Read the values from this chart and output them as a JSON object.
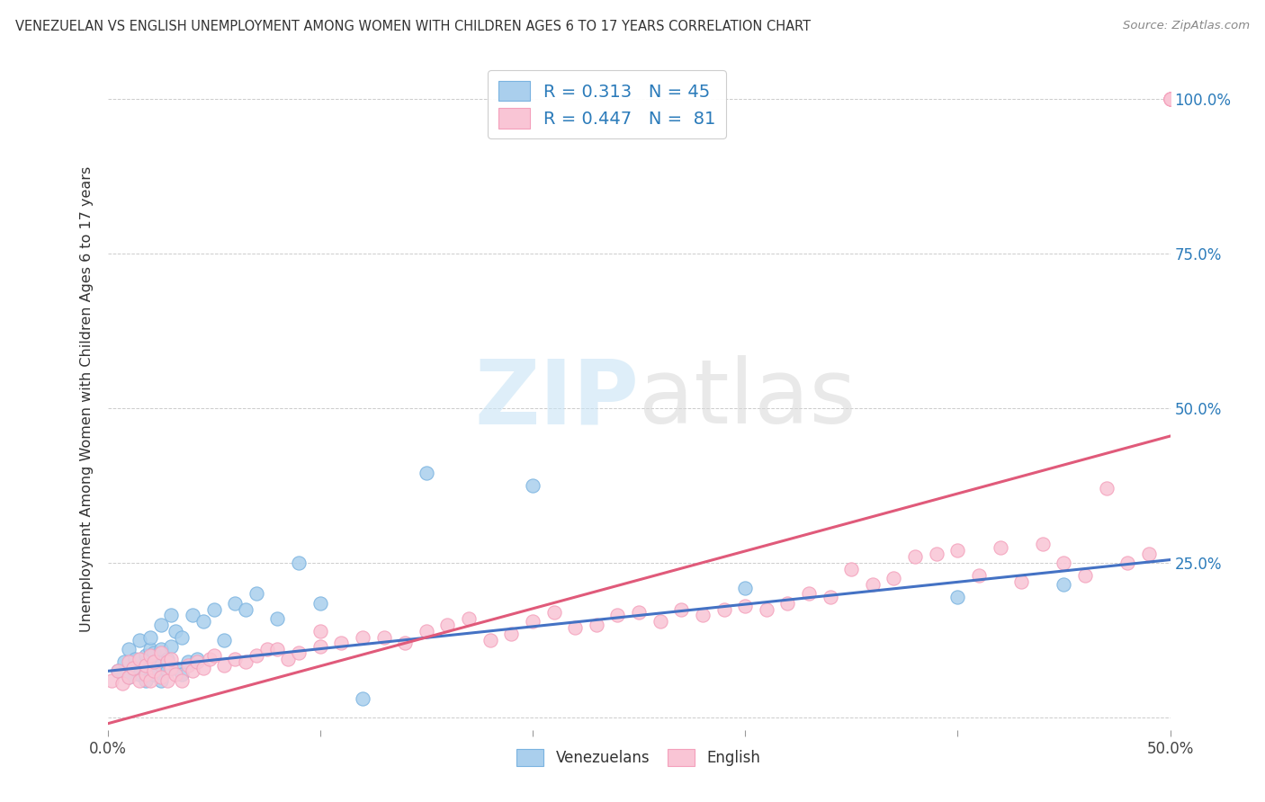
{
  "title": "VENEZUELAN VS ENGLISH UNEMPLOYMENT AMONG WOMEN WITH CHILDREN AGES 6 TO 17 YEARS CORRELATION CHART",
  "source": "Source: ZipAtlas.com",
  "ylabel": "Unemployment Among Women with Children Ages 6 to 17 years",
  "xlim": [
    0.0,
    0.5
  ],
  "ylim": [
    -0.02,
    1.05
  ],
  "venezuelan_color": "#aacfed",
  "venezuelan_edge": "#7ab3e0",
  "english_color": "#f9c5d5",
  "english_edge": "#f4a0bb",
  "trend_venezuelan_color": "#4472c4",
  "trend_english_color": "#e05a7a",
  "legend_R_venezuelan": "0.313",
  "legend_N_venezuelan": "45",
  "legend_R_english": "0.447",
  "legend_N_english": "81",
  "trend_ven_x0": 0.0,
  "trend_ven_y0": 0.075,
  "trend_ven_x1": 0.5,
  "trend_ven_y1": 0.255,
  "trend_eng_x0": 0.0,
  "trend_eng_y0": -0.01,
  "trend_eng_x1": 0.5,
  "trend_eng_y1": 0.455,
  "ven_x": [
    0.005,
    0.008,
    0.01,
    0.01,
    0.012,
    0.013,
    0.015,
    0.015,
    0.018,
    0.018,
    0.02,
    0.02,
    0.02,
    0.022,
    0.022,
    0.025,
    0.025,
    0.025,
    0.025,
    0.028,
    0.028,
    0.03,
    0.03,
    0.032,
    0.032,
    0.035,
    0.035,
    0.038,
    0.04,
    0.042,
    0.045,
    0.05,
    0.055,
    0.06,
    0.065,
    0.07,
    0.08,
    0.09,
    0.1,
    0.12,
    0.15,
    0.2,
    0.3,
    0.4,
    0.45
  ],
  "ven_y": [
    0.075,
    0.09,
    0.065,
    0.11,
    0.08,
    0.095,
    0.07,
    0.125,
    0.06,
    0.1,
    0.085,
    0.11,
    0.13,
    0.07,
    0.105,
    0.06,
    0.085,
    0.11,
    0.15,
    0.075,
    0.095,
    0.115,
    0.165,
    0.08,
    0.14,
    0.07,
    0.13,
    0.09,
    0.165,
    0.095,
    0.155,
    0.175,
    0.125,
    0.185,
    0.175,
    0.2,
    0.16,
    0.25,
    0.185,
    0.03,
    0.395,
    0.375,
    0.21,
    0.195,
    0.215
  ],
  "eng_x": [
    0.002,
    0.005,
    0.007,
    0.01,
    0.01,
    0.012,
    0.015,
    0.015,
    0.018,
    0.018,
    0.02,
    0.02,
    0.022,
    0.022,
    0.025,
    0.025,
    0.028,
    0.028,
    0.03,
    0.03,
    0.032,
    0.035,
    0.038,
    0.04,
    0.042,
    0.045,
    0.048,
    0.05,
    0.055,
    0.06,
    0.065,
    0.07,
    0.075,
    0.08,
    0.085,
    0.09,
    0.1,
    0.1,
    0.11,
    0.12,
    0.13,
    0.14,
    0.15,
    0.16,
    0.17,
    0.18,
    0.19,
    0.2,
    0.21,
    0.22,
    0.23,
    0.24,
    0.25,
    0.26,
    0.27,
    0.28,
    0.29,
    0.3,
    0.31,
    0.32,
    0.33,
    0.34,
    0.35,
    0.36,
    0.37,
    0.38,
    0.39,
    0.4,
    0.41,
    0.42,
    0.43,
    0.44,
    0.45,
    0.46,
    0.47,
    0.48,
    0.49,
    0.5,
    0.5,
    0.5,
    0.5
  ],
  "eng_y": [
    0.06,
    0.075,
    0.055,
    0.065,
    0.09,
    0.08,
    0.06,
    0.095,
    0.07,
    0.085,
    0.06,
    0.1,
    0.075,
    0.09,
    0.065,
    0.105,
    0.06,
    0.09,
    0.08,
    0.095,
    0.07,
    0.06,
    0.085,
    0.075,
    0.09,
    0.08,
    0.095,
    0.1,
    0.085,
    0.095,
    0.09,
    0.1,
    0.11,
    0.11,
    0.095,
    0.105,
    0.115,
    0.14,
    0.12,
    0.13,
    0.13,
    0.12,
    0.14,
    0.15,
    0.16,
    0.125,
    0.135,
    0.155,
    0.17,
    0.145,
    0.15,
    0.165,
    0.17,
    0.155,
    0.175,
    0.165,
    0.175,
    0.18,
    0.175,
    0.185,
    0.2,
    0.195,
    0.24,
    0.215,
    0.225,
    0.26,
    0.265,
    0.27,
    0.23,
    0.275,
    0.22,
    0.28,
    0.25,
    0.23,
    0.37,
    0.25,
    0.265,
    1.0,
    1.0,
    1.0,
    1.0
  ]
}
